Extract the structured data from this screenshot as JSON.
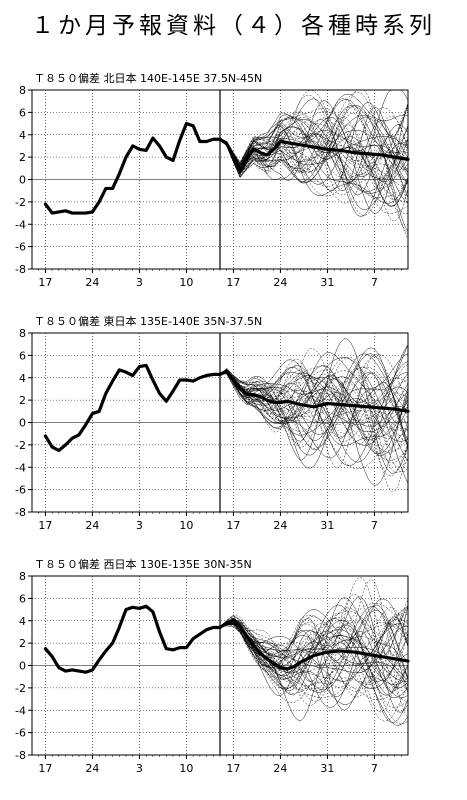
{
  "page": {
    "title": "１か月予報資料（４）各種時系列"
  },
  "chart_data": [
    {
      "type": "line",
      "title": "Ｔ８５０偏差 北日本 140E-145E 37.5N-45N",
      "x_tick_labels": [
        "17",
        "24",
        "3",
        "10",
        "17",
        "24",
        "31",
        "7"
      ],
      "x_tick_days": [
        2,
        9,
        16,
        23,
        30,
        37,
        44,
        51
      ],
      "xlim": [
        0,
        56
      ],
      "forecast_start_day": 28,
      "ylim": [
        -8,
        8
      ],
      "y_ticks": [
        -8,
        -6,
        -4,
        -2,
        0,
        2,
        4,
        6,
        8
      ],
      "series": [
        {
          "style": "observed",
          "x": [
            2,
            3,
            4,
            5,
            6,
            7,
            8,
            9,
            10,
            11,
            12,
            13,
            14,
            15,
            16,
            17,
            18,
            19,
            20,
            21,
            22,
            23,
            24,
            25,
            26,
            27,
            28
          ],
          "y": [
            -2.2,
            -3.0,
            -2.9,
            -2.8,
            -3.0,
            -3.0,
            -3.0,
            -2.9,
            -2.0,
            -0.8,
            -0.8,
            0.5,
            2.0,
            3.0,
            2.7,
            2.6,
            3.7,
            3.0,
            2.0,
            1.7,
            3.5,
            5.0,
            4.8,
            3.4,
            3.4,
            3.6,
            3.6
          ]
        },
        {
          "style": "ensemble_mean",
          "x": [
            28,
            29,
            30,
            31,
            32,
            33,
            34,
            35,
            36,
            37,
            38,
            40,
            42,
            44,
            46,
            48,
            50,
            52,
            54,
            56
          ],
          "y": [
            3.6,
            3.2,
            2.0,
            0.9,
            1.9,
            2.7,
            2.4,
            2.2,
            2.7,
            3.4,
            3.3,
            3.1,
            2.9,
            2.7,
            2.6,
            2.4,
            2.3,
            2.2,
            2.0,
            1.8
          ]
        }
      ]
    },
    {
      "type": "line",
      "title": "Ｔ８５０偏差 東日本 135E-140E 35N-37.5N",
      "x_tick_labels": [
        "17",
        "24",
        "3",
        "10",
        "17",
        "24",
        "31",
        "7"
      ],
      "x_tick_days": [
        2,
        9,
        16,
        23,
        30,
        37,
        44,
        51
      ],
      "xlim": [
        0,
        56
      ],
      "forecast_start_day": 28,
      "ylim": [
        -8,
        8
      ],
      "y_ticks": [
        -8,
        -6,
        -4,
        -2,
        0,
        2,
        4,
        6,
        8
      ],
      "series": [
        {
          "style": "observed",
          "x": [
            2,
            3,
            4,
            5,
            6,
            7,
            8,
            9,
            10,
            11,
            12,
            13,
            14,
            15,
            16,
            17,
            18,
            19,
            20,
            21,
            22,
            23,
            24,
            25,
            26,
            27,
            28
          ],
          "y": [
            -1.2,
            -2.2,
            -2.5,
            -2.0,
            -1.4,
            -1.1,
            -0.2,
            0.8,
            1.0,
            2.6,
            3.7,
            4.7,
            4.5,
            4.2,
            5.0,
            5.1,
            3.8,
            2.6,
            1.9,
            2.8,
            3.8,
            3.8,
            3.7,
            4.0,
            4.2,
            4.3,
            4.3
          ]
        },
        {
          "style": "ensemble_mean",
          "x": [
            28,
            29,
            30,
            31,
            32,
            33,
            34,
            35,
            36,
            37,
            38,
            40,
            42,
            44,
            46,
            48,
            50,
            52,
            54,
            56
          ],
          "y": [
            4.3,
            4.6,
            3.8,
            3.0,
            2.5,
            2.5,
            2.3,
            2.0,
            1.8,
            1.8,
            1.9,
            1.6,
            1.4,
            1.7,
            1.6,
            1.5,
            1.4,
            1.3,
            1.2,
            1.0
          ]
        }
      ]
    },
    {
      "type": "line",
      "title": "Ｔ８５０偏差 西日本 130E-135E 30N-35N",
      "x_tick_labels": [
        "17",
        "24",
        "3",
        "10",
        "17",
        "24",
        "31",
        "7"
      ],
      "x_tick_days": [
        2,
        9,
        16,
        23,
        30,
        37,
        44,
        51
      ],
      "xlim": [
        0,
        56
      ],
      "forecast_start_day": 28,
      "ylim": [
        -8,
        8
      ],
      "y_ticks": [
        -8,
        -6,
        -4,
        -2,
        0,
        2,
        4,
        6,
        8
      ],
      "series": [
        {
          "style": "observed",
          "x": [
            2,
            3,
            4,
            5,
            6,
            7,
            8,
            9,
            10,
            11,
            12,
            13,
            14,
            15,
            16,
            17,
            18,
            19,
            20,
            21,
            22,
            23,
            24,
            25,
            26,
            27,
            28
          ],
          "y": [
            1.5,
            0.8,
            -0.2,
            -0.5,
            -0.4,
            -0.5,
            -0.6,
            -0.4,
            0.5,
            1.3,
            2.0,
            3.4,
            5.0,
            5.2,
            5.1,
            5.3,
            4.8,
            3.0,
            1.5,
            1.4,
            1.6,
            1.6,
            2.4,
            2.8,
            3.2,
            3.4,
            3.4
          ]
        },
        {
          "style": "ensemble_mean",
          "x": [
            28,
            29,
            30,
            31,
            32,
            33,
            34,
            35,
            36,
            37,
            38,
            39,
            40,
            42,
            44,
            46,
            48,
            50,
            52,
            54,
            56
          ],
          "y": [
            3.4,
            3.8,
            4.0,
            3.5,
            2.6,
            1.8,
            1.1,
            0.6,
            0.2,
            -0.2,
            -0.3,
            -0.1,
            0.3,
            0.9,
            1.2,
            1.3,
            1.2,
            1.0,
            0.8,
            0.6,
            0.4
          ]
        }
      ]
    }
  ]
}
